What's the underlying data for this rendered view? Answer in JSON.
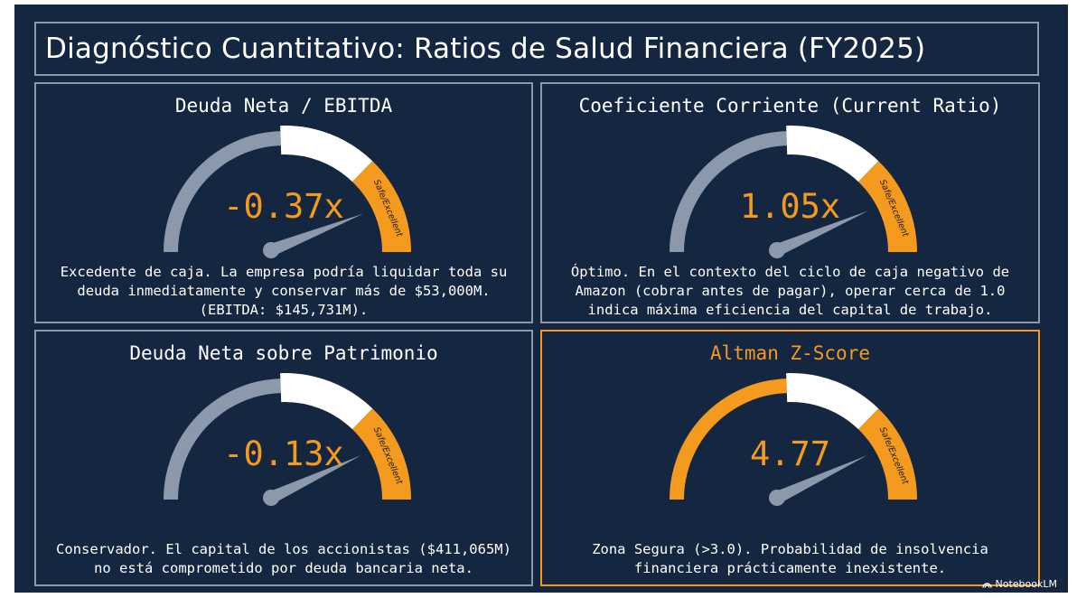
{
  "slide": {
    "title": "Diagnóstico Cuantitativo: Ratios de Salud Financiera (FY2025)",
    "brand": "NotebookLM"
  },
  "colors": {
    "background": "#152640",
    "border": "#8c99ad",
    "accent": "#f39a1f",
    "gauge_gray": "#8c99ad",
    "gauge_white": "#ffffff",
    "text": "#ffffff"
  },
  "gauge_zone_label": "Safe/Excellent",
  "panels": [
    {
      "title": "Deuda Neta / EBITDA",
      "value": "-0.37x",
      "needle_fraction": 0.88,
      "description": "Excedente de caja. La empresa podría liquidar toda su\ndeuda inmediatamente y conservar más de $53,000M.\n(EBITDA: $145,731M).",
      "highlight": false
    },
    {
      "title": "Coeficiente Corriente (Current Ratio)",
      "value": "1.05x",
      "needle_fraction": 0.87,
      "description": "Óptimo. En el contexto del ciclo de caja negativo de\nAmazon (cobrar antes de pagar), operar cerca de 1.0\nindica máxima eficiencia del capital de trabajo.",
      "highlight": false
    },
    {
      "title": "Deuda Neta sobre Patrimonio",
      "value": "-0.13x",
      "needle_fraction": 0.86,
      "description": "Conservador. El capital de los accionistas ($411,065M)\nno está comprometido por deuda bancaria neta.",
      "highlight": false
    },
    {
      "title": "Altman Z-Score",
      "value": "4.77",
      "needle_fraction": 0.86,
      "description": "Zona Segura (>3.0). Probabilidad de insolvencia\nfinanciera prácticamente inexistente.",
      "highlight": true
    }
  ]
}
